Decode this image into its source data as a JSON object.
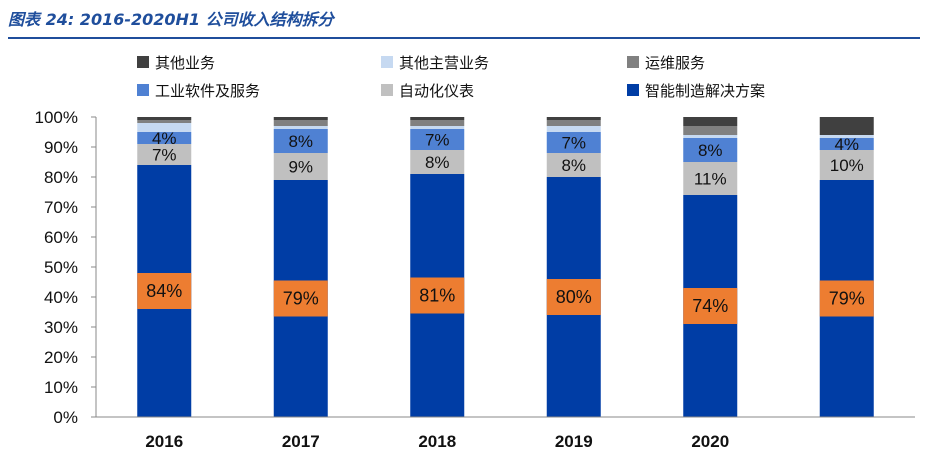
{
  "figure_title": "图表 24:  2016-2020H1 公司收入结构拆分",
  "colors": {
    "title": "#1f4e9c",
    "label_box": "#ed7d31"
  },
  "chart_data": {
    "type": "bar",
    "stacked": true,
    "categories": [
      "2016",
      "2017",
      "2018",
      "2019",
      "2020",
      ""
    ],
    "ylim": [
      0,
      100
    ],
    "yticks": [
      0,
      10,
      20,
      30,
      40,
      50,
      60,
      70,
      80,
      90,
      100
    ],
    "ytick_labels": [
      "0%",
      "10%",
      "20%",
      "30%",
      "40%",
      "50%",
      "60%",
      "70%",
      "80%",
      "90%",
      "100%"
    ],
    "legend_position": "top",
    "series": [
      {
        "name": "智能制造解决方案",
        "color": "#003da5",
        "values": [
          84,
          79,
          81,
          80,
          74,
          79
        ],
        "labels": [
          "84%",
          "79%",
          "81%",
          "80%",
          "74%",
          "79%"
        ]
      },
      {
        "name": "自动化仪表",
        "color": "#c0c0c0",
        "values": [
          7,
          9,
          8,
          8,
          11,
          10
        ],
        "labels": [
          "7%",
          "9%",
          "8%",
          "8%",
          "11%",
          "10%"
        ]
      },
      {
        "name": "工业软件及服务",
        "color": "#4f81d3",
        "values": [
          4,
          8,
          7,
          7,
          8,
          4
        ],
        "labels": [
          "4%",
          "8%",
          "7%",
          "7%",
          "8%",
          "4%"
        ]
      },
      {
        "name": "其他主营业务",
        "color": "#c6d9f1",
        "values": [
          3,
          1,
          1,
          2,
          1,
          1
        ],
        "labels": [
          "",
          "",
          "",
          "",
          "",
          ""
        ]
      },
      {
        "name": "运维服务",
        "color": "#808080",
        "values": [
          1,
          2,
          2,
          2,
          3,
          0
        ],
        "labels": [
          "",
          "",
          "",
          "",
          "",
          ""
        ]
      },
      {
        "name": "其他业务",
        "color": "#404040",
        "values": [
          1,
          1,
          1,
          1,
          3,
          6
        ],
        "labels": [
          "",
          "",
          "",
          "",
          "",
          ""
        ]
      }
    ],
    "legend": [
      {
        "name": "其他业务",
        "color": "#404040"
      },
      {
        "name": "其他主营业务",
        "color": "#c6d9f1"
      },
      {
        "name": "运维服务",
        "color": "#808080"
      },
      {
        "name": "工业软件及服务",
        "color": "#4f81d3"
      },
      {
        "name": "自动化仪表",
        "color": "#c0c0c0"
      },
      {
        "name": "智能制造解决方案",
        "color": "#003da5"
      }
    ]
  }
}
